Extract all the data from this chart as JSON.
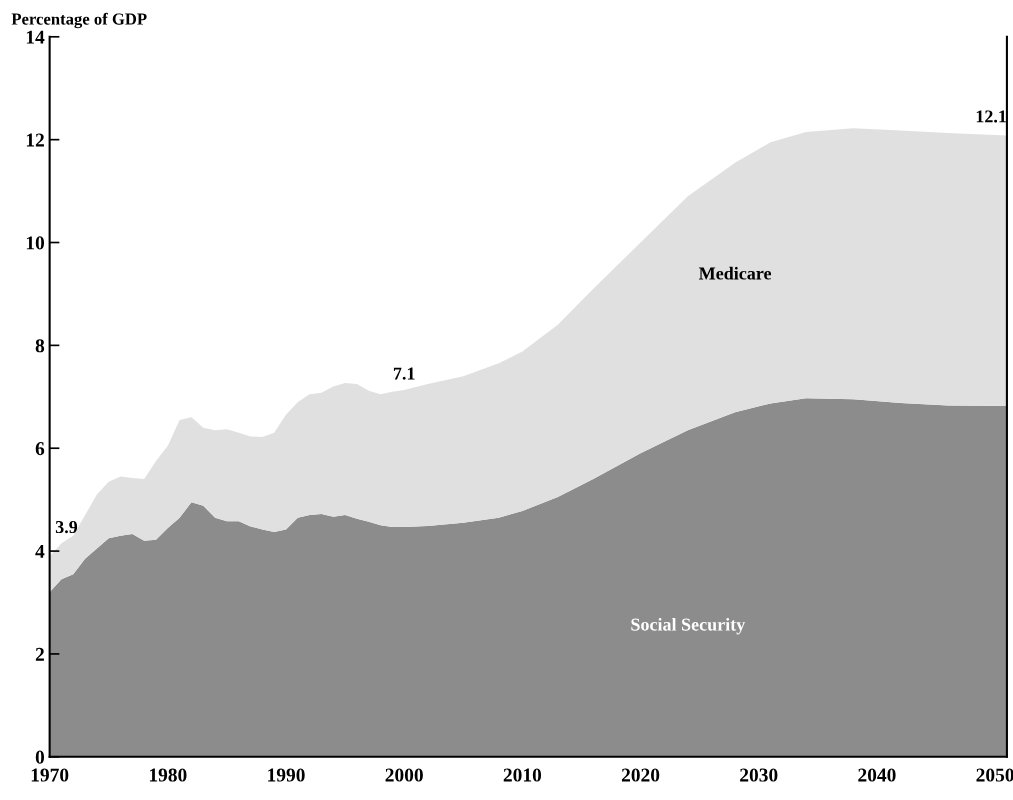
{
  "chart_data": {
    "type": "area",
    "stacked": true,
    "ylabel": "Percentage of GDP",
    "x": [
      1970,
      1971,
      1972,
      1973,
      1974,
      1975,
      1976,
      1977,
      1978,
      1979,
      1980,
      1981,
      1982,
      1983,
      1984,
      1985,
      1986,
      1987,
      1988,
      1989,
      1990,
      1991,
      1992,
      1993,
      1994,
      1995,
      1996,
      1997,
      1998,
      1999,
      2000,
      2002,
      2005,
      2008,
      2010,
      2013,
      2016,
      2020,
      2024,
      2028,
      2031,
      2034,
      2038,
      2042,
      2046,
      2051
    ],
    "series": [
      {
        "name": "Social Security",
        "color": "#8c8c8c",
        "values": [
          3.2,
          3.45,
          3.55,
          3.85,
          4.05,
          4.25,
          4.3,
          4.33,
          4.2,
          4.22,
          4.45,
          4.65,
          4.95,
          4.88,
          4.65,
          4.58,
          4.58,
          4.48,
          4.42,
          4.37,
          4.42,
          4.65,
          4.7,
          4.72,
          4.67,
          4.7,
          4.63,
          4.57,
          4.5,
          4.47,
          4.47,
          4.49,
          4.55,
          4.65,
          4.78,
          5.05,
          5.4,
          5.9,
          6.35,
          6.7,
          6.87,
          6.97,
          6.95,
          6.88,
          6.83,
          6.82
        ]
      },
      {
        "name": "Medicare",
        "color": "#e0e0e0",
        "values": [
          0.7,
          0.7,
          0.75,
          0.85,
          1.05,
          1.1,
          1.15,
          1.09,
          1.2,
          1.53,
          1.6,
          1.9,
          1.65,
          1.52,
          1.7,
          1.79,
          1.72,
          1.75,
          1.8,
          1.93,
          2.23,
          2.25,
          2.35,
          2.36,
          2.53,
          2.57,
          2.62,
          2.55,
          2.55,
          2.63,
          2.66,
          2.76,
          2.85,
          3.0,
          3.1,
          3.35,
          3.7,
          4.1,
          4.55,
          4.85,
          5.08,
          5.18,
          5.27,
          5.3,
          5.3,
          5.26
        ]
      }
    ],
    "xlim": [
      1970,
      2051
    ],
    "xticks": [
      1970,
      1980,
      1990,
      2000,
      2010,
      2020,
      2030,
      2040,
      2050
    ],
    "ylim": [
      0,
      14
    ],
    "yticks": [
      0,
      2,
      4,
      6,
      8,
      10,
      12,
      14
    ],
    "annotations": [
      {
        "text": "3.9",
        "x": 1970,
        "y": 3.9
      },
      {
        "text": "7.1",
        "x": 2000,
        "y": 7.1
      },
      {
        "text": "12.1",
        "x": 2051,
        "y": 12.1
      }
    ],
    "grid": false,
    "legend": false
  }
}
